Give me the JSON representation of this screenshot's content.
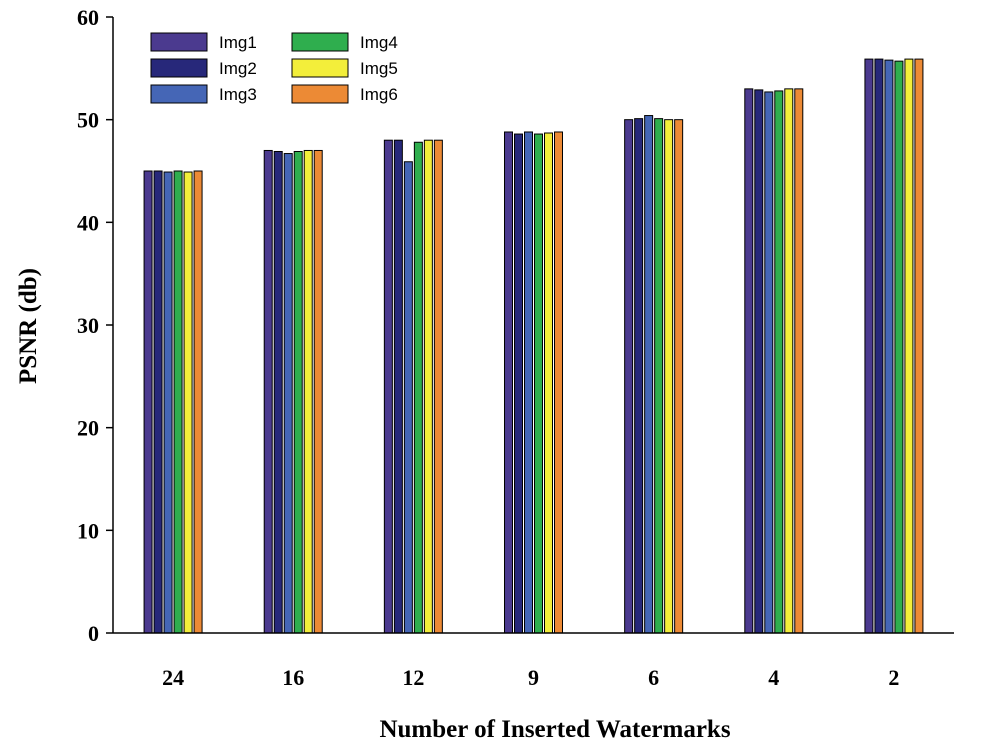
{
  "chart_data": {
    "type": "bar",
    "title": "",
    "xlabel": "Number of Inserted Watermarks",
    "ylabel": "PSNR (db)",
    "ylim": [
      0,
      60
    ],
    "yticks": [
      0,
      10,
      20,
      30,
      40,
      50,
      60
    ],
    "categories": [
      "24",
      "16",
      "12",
      "9",
      "6",
      "4",
      "2"
    ],
    "legend_position": "top-left",
    "grid": false,
    "series": [
      {
        "name": "Img1",
        "color": "#4b3a8f",
        "values": [
          45.0,
          47.0,
          48.0,
          48.8,
          50.0,
          53.0,
          55.9
        ]
      },
      {
        "name": "Img2",
        "color": "#27287a",
        "values": [
          45.0,
          46.9,
          48.0,
          48.6,
          50.1,
          52.9,
          55.9
        ]
      },
      {
        "name": "Img3",
        "color": "#4566b6",
        "values": [
          44.9,
          46.7,
          45.9,
          48.8,
          50.4,
          52.7,
          55.8
        ]
      },
      {
        "name": "Img4",
        "color": "#2fae4e",
        "values": [
          45.0,
          46.9,
          47.8,
          48.6,
          50.1,
          52.8,
          55.7
        ]
      },
      {
        "name": "Img5",
        "color": "#f3ee3a",
        "values": [
          44.9,
          47.0,
          48.0,
          48.7,
          50.0,
          53.0,
          55.9
        ]
      },
      {
        "name": "Img6",
        "color": "#ec8a35",
        "values": [
          45.0,
          47.0,
          48.0,
          48.8,
          50.0,
          53.0,
          55.9
        ]
      }
    ]
  }
}
